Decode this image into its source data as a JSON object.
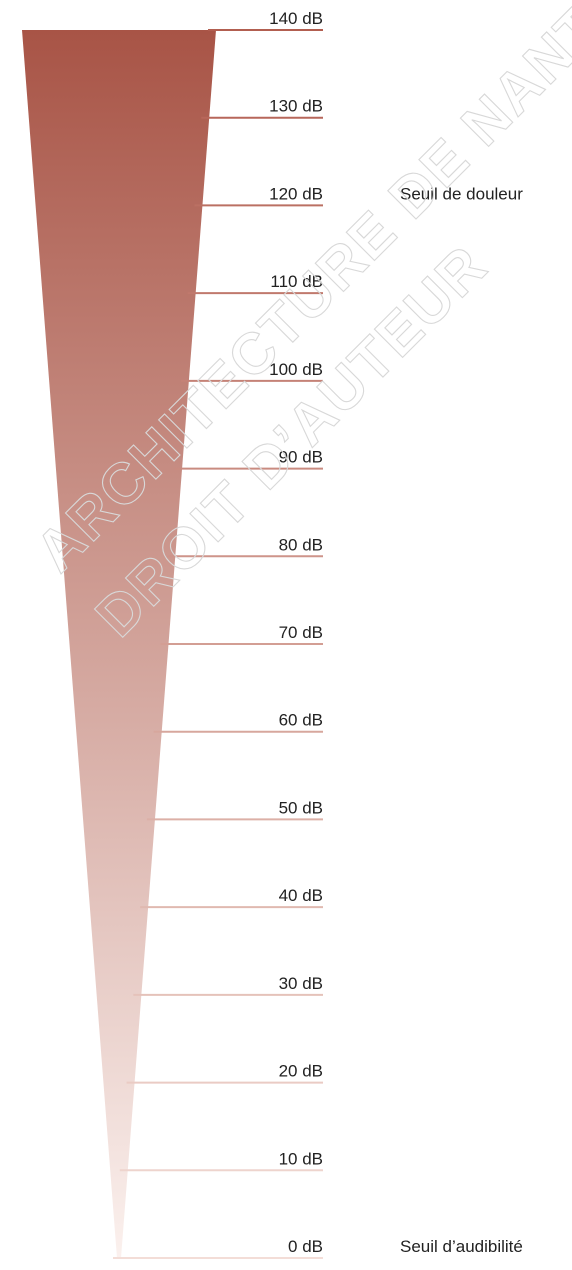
{
  "scale": {
    "unit": "dB",
    "levels": [
      {
        "value": 140,
        "label": "140 dB"
      },
      {
        "value": 130,
        "label": "130 dB"
      },
      {
        "value": 120,
        "label": "120 dB"
      },
      {
        "value": 110,
        "label": "110 dB"
      },
      {
        "value": 100,
        "label": "100 dB"
      },
      {
        "value": 90,
        "label": "90 dB"
      },
      {
        "value": 80,
        "label": "80 dB"
      },
      {
        "value": 70,
        "label": "70 dB"
      },
      {
        "value": 60,
        "label": "60 dB"
      },
      {
        "value": 50,
        "label": "50 dB"
      },
      {
        "value": 40,
        "label": "40 dB"
      },
      {
        "value": 30,
        "label": "30 dB"
      },
      {
        "value": 20,
        "label": "20 dB"
      },
      {
        "value": 10,
        "label": "10 dB"
      },
      {
        "value": 0,
        "label": "0 dB"
      }
    ],
    "annotations": [
      {
        "value": 120,
        "label": "Seuil de douleur"
      },
      {
        "value": 0,
        "label": "Seuil d’audibilité"
      }
    ],
    "colors": {
      "top": "#a85446",
      "bottom": "#fbf1ee",
      "tick_top": "#b25e50",
      "tick_bottom": "#f3ddd7"
    }
  },
  "watermark": {
    "line1": "ARCHITECTURE DE NANTES",
    "line2": "DROIT D’AUTEUR"
  }
}
